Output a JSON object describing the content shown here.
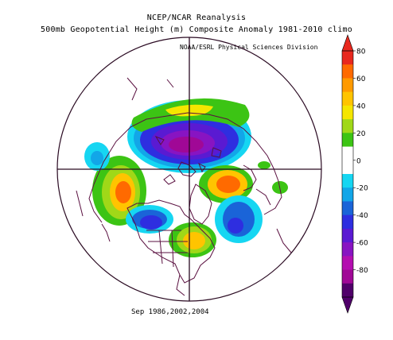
{
  "title_line1": "NCEP/NCAR Reanalysis",
  "title_line2": "500mb Geopotential Height (m) Composite Anomaly 1981-2010 climo",
  "credit": "NOAA/ESRL Physical Sciences Division",
  "dates": "Sep 1986,2002,2004",
  "colorbar": {
    "ticks": [
      "80",
      "60",
      "40",
      "20",
      "0",
      "-20",
      "-40",
      "-60",
      "-80"
    ],
    "colors": [
      "#e8281e",
      "#ff6a00",
      "#ff9a00",
      "#ffc400",
      "#f5e600",
      "#a0d818",
      "#3cc414",
      "#ffffff",
      "#ffffff",
      "#16d6f2",
      "#12a6e8",
      "#1a64d8",
      "#2e2ee0",
      "#5a1ad2",
      "#8814c2",
      "#b40eb0",
      "#a00896",
      "#50006a"
    ]
  },
  "map": {
    "projection": "north polar stereographic",
    "anomaly_centers": [
      {
        "region": "Arctic / Greenland",
        "sign": "negative",
        "peak_m": -80
      },
      {
        "region": "Eastern Siberia",
        "sign": "positive",
        "peak_m": 60
      },
      {
        "region": "Northern Europe",
        "sign": "positive",
        "peak_m": 60
      },
      {
        "region": "North Pacific",
        "sign": "negative",
        "peak_m": -40
      },
      {
        "region": "Western Russia",
        "sign": "negative",
        "peak_m": -40
      },
      {
        "region": "Eastern North America",
        "sign": "positive",
        "peak_m": 40
      },
      {
        "region": "Western North America",
        "sign": "negative",
        "peak_m": -40
      }
    ]
  }
}
